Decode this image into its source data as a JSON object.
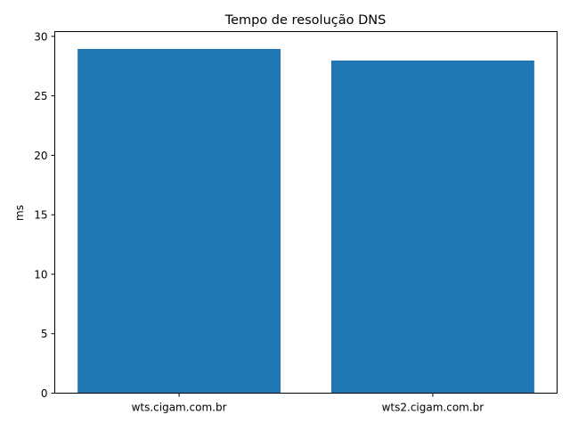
{
  "chart_data": {
    "type": "bar",
    "title": "Tempo de resolução DNS",
    "xlabel": "",
    "ylabel": "ms",
    "categories": [
      "wts.cigam.com.br",
      "wts2.cigam.com.br"
    ],
    "values": [
      28.94,
      27.97
    ],
    "ylim": [
      0,
      30.4
    ],
    "yticks": [
      0,
      5,
      10,
      15,
      20,
      25,
      30
    ],
    "grid": false,
    "bar_color": "#1f77b4"
  }
}
